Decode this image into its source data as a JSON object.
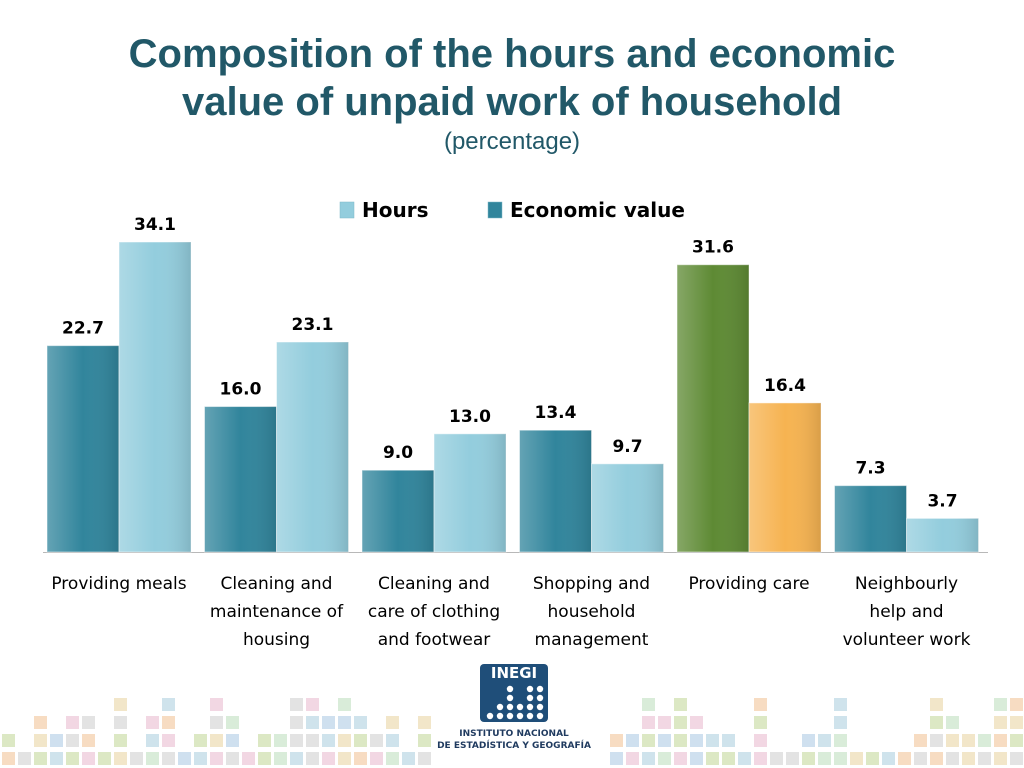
{
  "header": {
    "title_line1": "Composition of the hours and economic",
    "title_line2": "value of unpaid work of household",
    "subtitle": "(percentage)"
  },
  "chart_data": {
    "type": "bar",
    "categories": [
      [
        "Providing meals"
      ],
      [
        "Cleaning and",
        "maintenance of",
        "housing"
      ],
      [
        "Cleaning and",
        "care of clothing",
        "and footwear"
      ],
      [
        "Shopping and",
        "household",
        "management"
      ],
      [
        "Providing care"
      ],
      [
        "Neighbourly",
        "help and",
        "volunteer work"
      ]
    ],
    "series": [
      {
        "name": "Economic value",
        "values": [
          22.7,
          16.0,
          9.0,
          13.4,
          31.6,
          7.3
        ],
        "color": "#31859C",
        "value_labels": [
          "22.7",
          "16.0",
          "9.0",
          "13.4",
          "31.6",
          "7.3"
        ]
      },
      {
        "name": "Hours",
        "values": [
          34.1,
          23.1,
          13.0,
          9.7,
          16.4,
          3.7
        ],
        "color": "#93CDDD",
        "value_labels": [
          "34.1",
          "23.1",
          "13.0",
          "9.7",
          "16.4",
          "3.7"
        ]
      }
    ],
    "highlight": {
      "category_index": 4,
      "economic_color": "#5E8A34",
      "hours_color": "#F6B351"
    },
    "legend": [
      {
        "name": "Hours",
        "color": "#93CDDD"
      },
      {
        "name": "Economic value",
        "color": "#31859C"
      }
    ],
    "legend_position": "top-center",
    "ylim": [
      0,
      40
    ],
    "grid": false,
    "xlabel": "",
    "ylabel": ""
  },
  "footer": {
    "logo_text": "INEGI",
    "logo_line1": "INSTITUTO NACIONAL",
    "logo_line2": "DE ESTADÍSTICA Y GEOGRAFÍA"
  }
}
